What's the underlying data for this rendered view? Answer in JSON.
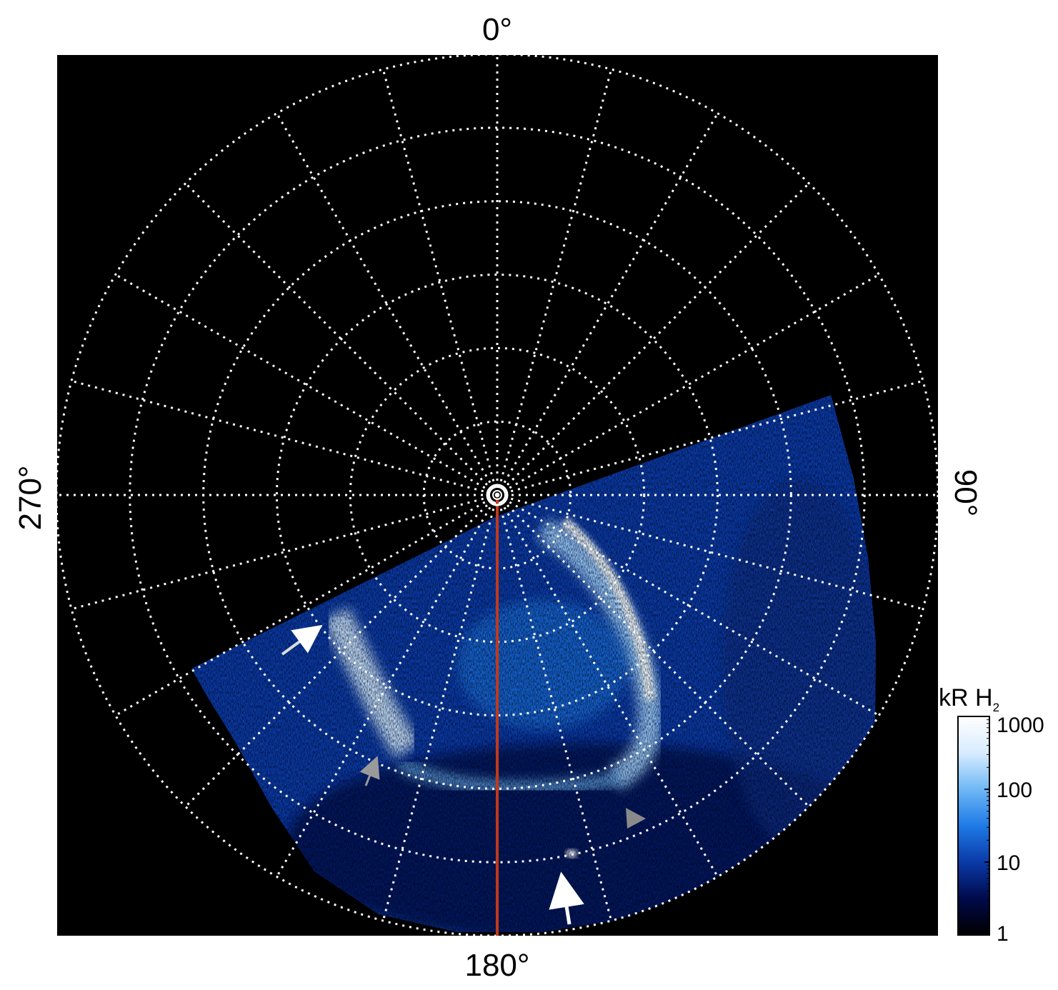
{
  "chart_data": {
    "type": "heatmap",
    "title": "",
    "projection": "polar",
    "longitude_labels": {
      "top": "0°",
      "right": "90°",
      "bottom": "180°",
      "left": "270°"
    },
    "meridian_spacing_deg": 15,
    "latitude_ring_count": 6,
    "highlighted_meridian_deg": 180,
    "colorbar": {
      "label_main": "kR H",
      "label_sub": "2",
      "scale": "log",
      "range": [
        1,
        1000
      ],
      "ticks": [
        {
          "value": 1,
          "label": "1"
        },
        {
          "value": 10,
          "label": "10"
        },
        {
          "value": 100,
          "label": "100"
        },
        {
          "value": 1000,
          "label": "1000"
        }
      ]
    },
    "colors": {
      "background": "#000000",
      "grid": "#ffffff",
      "meridian_line": "#c0391b",
      "colormap": [
        "#000000",
        "#000a4a",
        "#0a3aa8",
        "#1e7ae6",
        "#6fb8f5",
        "#d8ecff",
        "#ffffff"
      ]
    },
    "annotations": [
      {
        "type": "arrow",
        "color": "white"
      },
      {
        "type": "arrow",
        "color": "white"
      },
      {
        "type": "arrow",
        "color": "gray"
      },
      {
        "type": "arrow",
        "color": "gray"
      }
    ]
  }
}
